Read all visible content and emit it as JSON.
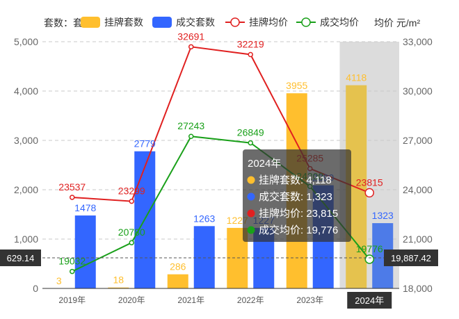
{
  "chart_data": {
    "type": "bar",
    "categories": [
      "2019年",
      "2020年",
      "2021年",
      "2022年",
      "2023年",
      "2024年"
    ],
    "left_axis_name": "套数：套",
    "right_axis_name": "均价 元/m²",
    "y_left": {
      "min": 0,
      "max": 5000,
      "ticks": [
        "0",
        "1,000",
        "2,000",
        "3,000",
        "4,000",
        "5,000"
      ]
    },
    "y_right": {
      "min": 18000,
      "max": 33000,
      "ticks": [
        "18,000",
        "21,000",
        "24,000",
        "27,000",
        "30,000",
        "33,000"
      ]
    },
    "series": [
      {
        "name": "挂牌套数",
        "type": "bar",
        "axis": "left",
        "color": "#FFBF2E",
        "values": [
          3,
          18,
          286,
          1227,
          3955,
          4118
        ],
        "labels": [
          "3",
          "18",
          "286",
          "1227",
          "3955",
          "4118"
        ]
      },
      {
        "name": "成交套数",
        "type": "bar",
        "axis": "left",
        "color": "#3366FF",
        "values": [
          1478,
          2779,
          1263,
          1227,
          2090,
          1323
        ],
        "labels": [
          "1478",
          "2779",
          "1263",
          "1227",
          "2090",
          "1323"
        ]
      },
      {
        "name": "挂牌均价",
        "type": "line",
        "axis": "right",
        "color": "#E02020",
        "values": [
          23537,
          23299,
          32691,
          32219,
          25285,
          23815
        ],
        "labels": [
          "23537",
          "23299",
          "32691",
          "32219",
          "25285",
          "23815"
        ]
      },
      {
        "name": "成交均价",
        "type": "line",
        "axis": "right",
        "color": "#1AA01A",
        "values": [
          19032,
          20780,
          27243,
          26849,
          24200,
          19776
        ],
        "labels": [
          "19032",
          "20780",
          "27243",
          "26849",
          "24200",
          "19776"
        ]
      }
    ],
    "highlight_category": "2024年",
    "grid": "dashed-horizontal",
    "legend_position": "top"
  },
  "tooltip": {
    "title": "2024年",
    "rows": [
      {
        "name": "挂牌套数",
        "value": "4,118",
        "color": "#FFBF2E"
      },
      {
        "name": "成交套数",
        "value": "1,323",
        "color": "#3366FF"
      },
      {
        "name": "挂牌均价",
        "value": "23,815",
        "color": "#E02020"
      },
      {
        "name": "成交均价",
        "value": "19,776",
        "color": "#1AA01A"
      }
    ]
  },
  "pointer": {
    "left_value": "629.14",
    "right_value": "19,887.42",
    "category": "2024年"
  }
}
